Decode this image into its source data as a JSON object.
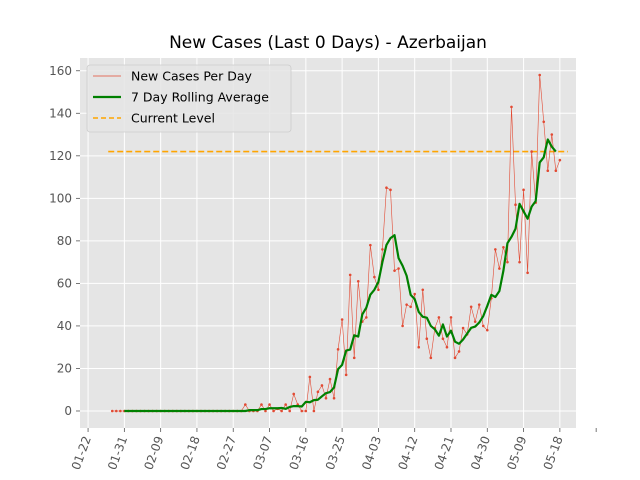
{
  "chart_data": {
    "type": "line",
    "title": "New Cases (Last 0 Days) - Azerbaijan",
    "xlabel": "",
    "ylabel": "",
    "x_start": "01-28",
    "x_end": "05-20",
    "xlim": [
      "01-20",
      "05-22"
    ],
    "ylim": [
      -8,
      166
    ],
    "x_ticks": [
      "01-22",
      "01-31",
      "02-09",
      "02-18",
      "02-27",
      "03-07",
      "03-16",
      "03-25",
      "04-03",
      "04-12",
      "04-21",
      "04-30",
      "05-09",
      "05-18"
    ],
    "y_ticks": [
      0,
      20,
      40,
      60,
      80,
      100,
      120,
      140,
      160
    ],
    "grid": true,
    "legend_position": "upper-left",
    "legend": [
      "New Cases Per Day",
      "7 Day Rolling Average",
      "Current Level"
    ],
    "colors": {
      "background": "#e5e5e5",
      "grid": "#ffffff",
      "daily": "#e24a33",
      "rolling": "#008000",
      "current": "#ffa500"
    },
    "current_level": 122,
    "series": [
      {
        "name": "New Cases Per Day",
        "values": [
          0,
          0,
          0,
          0,
          0,
          0,
          0,
          0,
          0,
          0,
          0,
          0,
          0,
          0,
          0,
          0,
          0,
          0,
          0,
          0,
          0,
          0,
          0,
          0,
          0,
          0,
          0,
          0,
          0,
          0,
          0,
          0,
          0,
          3,
          0,
          0,
          0,
          3,
          0,
          3,
          0,
          1,
          0,
          3,
          0,
          8,
          3,
          0,
          0,
          16,
          0,
          9,
          12,
          6,
          15,
          6,
          29,
          43,
          17,
          64,
          25,
          61,
          42,
          44,
          78,
          63,
          57,
          76,
          105,
          104,
          66,
          67,
          40,
          50,
          49,
          55,
          30,
          57,
          34,
          25,
          39,
          44,
          34,
          30,
          44,
          25,
          28,
          39,
          36,
          49,
          42,
          50,
          40,
          38,
          53,
          76,
          67,
          77,
          70,
          143,
          97,
          70,
          104,
          65,
          122,
          98,
          158,
          136,
          113,
          130,
          113,
          118
        ]
      },
      {
        "name": "7 Day Rolling Average",
        "start": "01-31",
        "values": [
          0,
          0,
          0,
          0,
          0,
          0,
          0,
          0,
          0,
          0,
          0,
          0,
          0,
          0,
          0,
          0,
          0,
          0,
          0,
          0,
          0,
          0,
          0,
          0,
          0,
          0,
          0,
          0,
          0,
          0,
          0,
          0.4,
          0.4,
          0.4,
          0.9,
          0.9,
          1.3,
          1.3,
          1.3,
          1.4,
          1,
          1.9,
          2.3,
          2.3,
          2.1,
          4.3,
          4.1,
          5.1,
          5.3,
          6.9,
          8.4,
          8.9,
          11.1,
          19.7,
          21.7,
          28.4,
          28.9,
          35.6,
          35,
          45.4,
          48.6,
          54.7,
          57,
          60.7,
          70.1,
          78.1,
          81.3,
          82.7,
          71.9,
          68.3,
          63.6,
          54.6,
          52.6,
          46.6,
          44.3,
          43.9,
          40,
          38.4,
          35.4,
          40.7,
          35,
          37.8,
          32.6,
          31.6,
          33.6,
          36.4,
          39.1,
          39.7,
          41.6,
          44.6,
          49.4,
          54.6,
          53.6,
          56.4,
          66,
          78.9,
          81.9,
          85.7,
          97.4,
          93.9,
          90.4,
          96.1,
          98.7,
          116.9,
          119.3,
          127.7,
          124.3,
          122
        ]
      }
    ]
  }
}
